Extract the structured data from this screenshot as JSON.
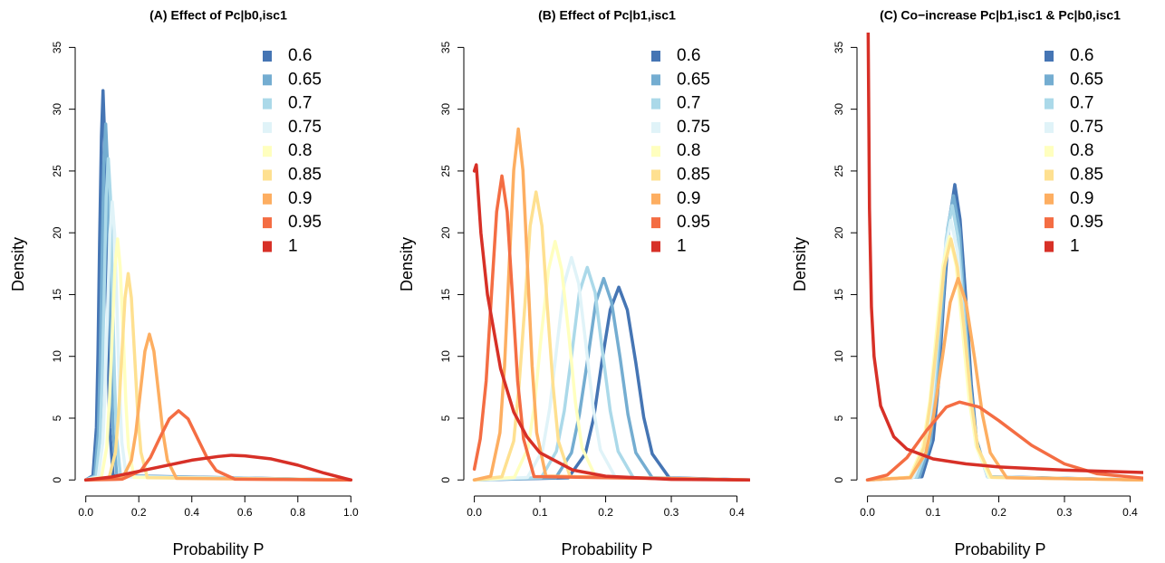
{
  "chart_data": [
    {
      "type": "line",
      "title": "(A) Effect of Pc|b0,isc1",
      "xlabel": "Probability P",
      "ylabel": "Density",
      "legend": "top-right",
      "xlim": [
        -0.04,
        1.04
      ],
      "ylim": [
        -1.3,
        36.2
      ],
      "xticks": [
        {
          "value": 0,
          "label": "0.0"
        },
        0.2,
        0.4,
        0.6,
        0.8,
        {
          "value": 1,
          "label": "1.0"
        }
      ],
      "yticks": [
        0,
        5,
        10,
        15,
        20,
        25,
        30,
        35
      ],
      "series": [
        {
          "name": "0.6",
          "color": "#4575b4",
          "x": [
            0,
            0.027,
            0.04,
            0.046,
            0.052,
            0.059,
            0.065,
            0.071,
            0.078,
            0.084,
            0.09,
            0.103,
            1
          ],
          "values": [
            0,
            0.35,
            4.25,
            10.24,
            19.12,
            27.78,
            31.5,
            27.78,
            19.12,
            10.24,
            4.25,
            0.35,
            0
          ]
        },
        {
          "name": "0.65",
          "color": "#74add1",
          "x": [
            0,
            0.033,
            0.047,
            0.054,
            0.061,
            0.068,
            0.075,
            0.082,
            0.089,
            0.096,
            0.103,
            0.117,
            1
          ],
          "values": [
            0,
            0.32,
            3.89,
            9.36,
            17.48,
            25.4,
            28.8,
            25.4,
            17.48,
            9.36,
            3.89,
            0.32,
            0
          ]
        },
        {
          "name": "0.7",
          "color": "#abd9e9",
          "x": [
            0,
            0.039,
            0.054,
            0.062,
            0.07,
            0.077,
            0.085,
            0.093,
            0.1,
            0.108,
            0.116,
            0.131,
            1
          ],
          "values": [
            0,
            0.29,
            3.51,
            8.45,
            15.78,
            22.93,
            26,
            22.93,
            15.78,
            8.45,
            3.51,
            0.29,
            0
          ]
        },
        {
          "name": "0.75",
          "color": "#e0f3f8",
          "x": [
            0,
            0.047,
            0.064,
            0.073,
            0.082,
            0.091,
            0.1,
            0.109,
            0.118,
            0.127,
            0.136,
            0.153,
            1
          ],
          "values": [
            0,
            0.25,
            3.04,
            7.31,
            13.66,
            19.85,
            22.5,
            19.85,
            13.66,
            7.31,
            3.04,
            0.25,
            0
          ]
        },
        {
          "name": "0.8",
          "color": "#ffffbf",
          "x": [
            0,
            0.059,
            0.079,
            0.089,
            0.1,
            0.11,
            0.12,
            0.13,
            0.141,
            0.151,
            0.161,
            0.182,
            1
          ],
          "values": [
            0,
            0.21,
            2.63,
            6.34,
            11.84,
            17.2,
            19.5,
            17.2,
            11.84,
            6.34,
            2.63,
            0.21,
            0
          ]
        },
        {
          "name": "0.85",
          "color": "#fee090",
          "x": [
            0,
            0.088,
            0.112,
            0.124,
            0.136,
            0.148,
            0.16,
            0.172,
            0.184,
            0.196,
            0.208,
            0.232,
            1
          ],
          "values": [
            0,
            0.18,
            2.25,
            5.43,
            10.14,
            14.73,
            16.7,
            14.73,
            10.14,
            5.43,
            2.25,
            0.18,
            0
          ]
        },
        {
          "name": "0.9",
          "color": "#fdae61",
          "x": [
            0,
            0.138,
            0.172,
            0.189,
            0.206,
            0.223,
            0.24,
            0.257,
            0.274,
            0.291,
            0.308,
            0.342,
            1
          ],
          "values": [
            0,
            0.13,
            1.59,
            3.84,
            7.16,
            10.41,
            11.8,
            10.41,
            7.16,
            3.84,
            1.59,
            0.13,
            0
          ]
        },
        {
          "name": "0.95",
          "color": "#f46d43",
          "x": [
            0,
            0.137,
            0.208,
            0.244,
            0.279,
            0.315,
            0.35,
            0.386,
            0.421,
            0.457,
            0.492,
            0.563,
            1
          ],
          "values": [
            0,
            0.06,
            0.76,
            1.82,
            3.4,
            4.94,
            5.6,
            4.94,
            3.4,
            1.82,
            0.76,
            0.06,
            0
          ]
        },
        {
          "name": "1",
          "color": "#d73027",
          "x": [
            0,
            0.1,
            0.2,
            0.3,
            0.4,
            0.5,
            0.55,
            0.6,
            0.7,
            0.8,
            0.9,
            1
          ],
          "values": [
            0,
            0.25,
            0.7,
            1.15,
            1.6,
            1.9,
            2.0,
            1.95,
            1.7,
            1.2,
            0.55,
            0
          ]
        }
      ]
    },
    {
      "type": "line",
      "title": "(B) Effect of Pc|b1,isc1",
      "xlabel": "Probability P",
      "ylabel": "Density",
      "legend": "top-right",
      "xlim": [
        -0.016,
        0.42
      ],
      "ylim": [
        -1.3,
        36.2
      ],
      "xticks": [
        {
          "value": 0,
          "label": "0.0"
        },
        0.1,
        0.2,
        0.3,
        0.4
      ],
      "yticks": [
        0,
        5,
        10,
        15,
        20,
        25,
        30,
        35
      ],
      "series": [
        {
          "name": "0.6",
          "color": "#4575b4",
          "x": [
            0,
            0.143,
            0.169,
            0.182,
            0.194,
            0.207,
            0.22,
            0.233,
            0.246,
            0.258,
            0.271,
            0.297,
            0.42
          ],
          "values": [
            0,
            0.17,
            2.11,
            5.07,
            9.47,
            13.76,
            15.6,
            13.76,
            9.47,
            5.07,
            2.11,
            0.17,
            0
          ]
        },
        {
          "name": "0.65",
          "color": "#74add1",
          "x": [
            0,
            0.124,
            0.148,
            0.16,
            0.173,
            0.185,
            0.197,
            0.209,
            0.222,
            0.234,
            0.246,
            0.271,
            0.42
          ],
          "values": [
            0,
            0.18,
            2.2,
            5.3,
            9.89,
            14.38,
            16.3,
            14.38,
            9.89,
            5.3,
            2.2,
            0.18,
            0
          ]
        },
        {
          "name": "0.7",
          "color": "#abd9e9",
          "x": [
            0,
            0.102,
            0.125,
            0.137,
            0.149,
            0.16,
            0.172,
            0.184,
            0.195,
            0.207,
            0.219,
            0.242,
            0.42
          ],
          "values": [
            0,
            0.19,
            2.32,
            5.59,
            10.44,
            15.17,
            17.2,
            15.17,
            10.44,
            5.59,
            2.32,
            0.19,
            0
          ]
        },
        {
          "name": "0.75",
          "color": "#e0f3f8",
          "x": [
            0,
            0.081,
            0.104,
            0.115,
            0.126,
            0.137,
            0.148,
            0.159,
            0.17,
            0.181,
            0.192,
            0.215,
            0.42
          ],
          "values": [
            0,
            0.2,
            2.43,
            5.85,
            10.93,
            15.88,
            18,
            15.88,
            10.93,
            5.85,
            2.43,
            0.2,
            0
          ]
        },
        {
          "name": "0.8",
          "color": "#ffffbf",
          "x": [
            0,
            0.061,
            0.082,
            0.092,
            0.102,
            0.113,
            0.123,
            0.133,
            0.144,
            0.154,
            0.164,
            0.185,
            0.42
          ],
          "values": [
            0,
            0.21,
            2.61,
            6.27,
            11.72,
            17.02,
            19.3,
            17.02,
            11.72,
            6.27,
            2.61,
            0.21,
            0
          ]
        },
        {
          "name": "0.85",
          "color": "#fee090",
          "x": [
            0,
            0.042,
            0.06,
            0.068,
            0.077,
            0.085,
            0.094,
            0.103,
            0.111,
            0.12,
            0.128,
            0.146,
            0.42
          ],
          "values": [
            0,
            0.26,
            3.15,
            7.57,
            14.14,
            20.55,
            23.3,
            20.55,
            14.14,
            7.57,
            3.15,
            0.26,
            0
          ]
        },
        {
          "name": "0.9",
          "color": "#fdae61",
          "x": [
            0,
            0.025,
            0.039,
            0.046,
            0.053,
            0.06,
            0.067,
            0.074,
            0.081,
            0.088,
            0.095,
            0.109,
            0.42
          ],
          "values": [
            0,
            0.31,
            3.83,
            9.23,
            17.24,
            25.05,
            28.4,
            25.05,
            17.24,
            9.23,
            3.83,
            0.31,
            0
          ]
        },
        {
          "name": "0.95",
          "color": "#f46d43",
          "x": [
            0,
            0.009,
            0.018,
            0.026,
            0.034,
            0.042,
            0.05,
            0.058,
            0.066,
            0.075,
            0.091,
            0.42
          ],
          "values": [
            0.88,
            3.32,
            8.0,
            14.93,
            21.7,
            24.6,
            21.7,
            14.93,
            8.0,
            3.32,
            0.27,
            0
          ]
        },
        {
          "name": "1",
          "color": "#d73027",
          "x": [
            0,
            0.003,
            0.01,
            0.02,
            0.04,
            0.06,
            0.08,
            0.1,
            0.15,
            0.2,
            0.3,
            0.42
          ],
          "values": [
            25,
            25.5,
            20,
            15,
            9,
            5.5,
            3.5,
            2.2,
            0.8,
            0.3,
            0.05,
            0
          ]
        }
      ]
    },
    {
      "type": "line",
      "title": "(C) Co−increase Pc|b1,isc1 & Pc|b0,isc1",
      "xlabel": "Probability P",
      "ylabel": "Density",
      "legend": "top-right",
      "xlim": [
        -0.016,
        0.42
      ],
      "ylim": [
        -1.3,
        36.2
      ],
      "xticks": [
        {
          "value": 0,
          "label": "0.0"
        },
        0.1,
        0.2,
        0.3,
        0.4
      ],
      "yticks": [
        0,
        5,
        10,
        15,
        20,
        25,
        30,
        35
      ],
      "series": [
        {
          "name": "0.6",
          "color": "#4575b4",
          "x": [
            0,
            0.083,
            0.1,
            0.108,
            0.116,
            0.125,
            0.133,
            0.141,
            0.15,
            0.158,
            0.166,
            0.183,
            0.42
          ],
          "values": [
            0,
            0.26,
            3.23,
            7.77,
            14.51,
            21.08,
            23.9,
            21.08,
            14.51,
            7.77,
            3.23,
            0.26,
            0
          ]
        },
        {
          "name": "0.65",
          "color": "#74add1",
          "x": [
            0,
            0.079,
            0.096,
            0.105,
            0.114,
            0.122,
            0.131,
            0.14,
            0.148,
            0.157,
            0.166,
            0.183,
            0.42
          ],
          "values": [
            0,
            0.25,
            3.11,
            7.48,
            13.96,
            20.29,
            23,
            20.29,
            13.96,
            7.48,
            3.11,
            0.25,
            0
          ]
        },
        {
          "name": "0.7",
          "color": "#abd9e9",
          "x": [
            0,
            0.075,
            0.093,
            0.102,
            0.111,
            0.12,
            0.129,
            0.138,
            0.147,
            0.156,
            0.165,
            0.183,
            0.42
          ],
          "values": [
            0,
            0.24,
            3.0,
            7.22,
            13.48,
            19.58,
            22.2,
            19.58,
            13.48,
            7.22,
            3.0,
            0.24,
            0
          ]
        },
        {
          "name": "0.75",
          "color": "#e0f3f8",
          "x": [
            0,
            0.07,
            0.089,
            0.099,
            0.108,
            0.118,
            0.127,
            0.137,
            0.146,
            0.156,
            0.165,
            0.184,
            0.42
          ],
          "values": [
            0,
            0.23,
            2.84,
            6.83,
            12.75,
            18.52,
            21,
            18.52,
            12.75,
            6.83,
            2.84,
            0.23,
            0
          ]
        },
        {
          "name": "0.8",
          "color": "#ffffbf",
          "x": [
            0,
            0.064,
            0.084,
            0.095,
            0.105,
            0.115,
            0.125,
            0.135,
            0.145,
            0.155,
            0.166,
            0.186,
            0.42
          ],
          "values": [
            0,
            0.22,
            2.66,
            6.4,
            11.96,
            17.38,
            19.7,
            17.38,
            11.96,
            6.4,
            2.66,
            0.22,
            0
          ]
        },
        {
          "name": "0.85",
          "color": "#fee090",
          "x": [
            0,
            0.066,
            0.086,
            0.096,
            0.107,
            0.117,
            0.127,
            0.137,
            0.148,
            0.158,
            0.168,
            0.189,
            0.42
          ],
          "values": [
            0,
            0.21,
            2.63,
            6.34,
            11.84,
            17.2,
            19.5,
            17.2,
            11.84,
            6.34,
            2.63,
            0.21,
            0
          ]
        },
        {
          "name": "0.9",
          "color": "#fdae61",
          "x": [
            0,
            0.065,
            0.089,
            0.101,
            0.114,
            0.126,
            0.138,
            0.15,
            0.163,
            0.175,
            0.187,
            0.212,
            0.42
          ],
          "values": [
            0,
            0.18,
            2.2,
            5.3,
            9.89,
            14.38,
            16.3,
            14.38,
            9.89,
            5.3,
            2.2,
            0.18,
            0
          ]
        },
        {
          "name": "0.95",
          "color": "#f46d43",
          "x": [
            0,
            0.03,
            0.06,
            0.09,
            0.12,
            0.14,
            0.17,
            0.2,
            0.25,
            0.3,
            0.35,
            0.42
          ],
          "values": [
            0,
            0.4,
            1.8,
            4.0,
            5.9,
            6.3,
            5.9,
            4.8,
            2.8,
            1.3,
            0.5,
            0.15
          ]
        },
        {
          "name": "1",
          "color": "#d73027",
          "x": [
            0.0005,
            0.003,
            0.006,
            0.01,
            0.02,
            0.04,
            0.06,
            0.1,
            0.15,
            0.2,
            0.3,
            0.42
          ],
          "values": [
            40,
            22,
            14,
            10,
            6,
            3.5,
            2.5,
            1.7,
            1.3,
            1.05,
            0.8,
            0.6
          ]
        }
      ]
    }
  ]
}
